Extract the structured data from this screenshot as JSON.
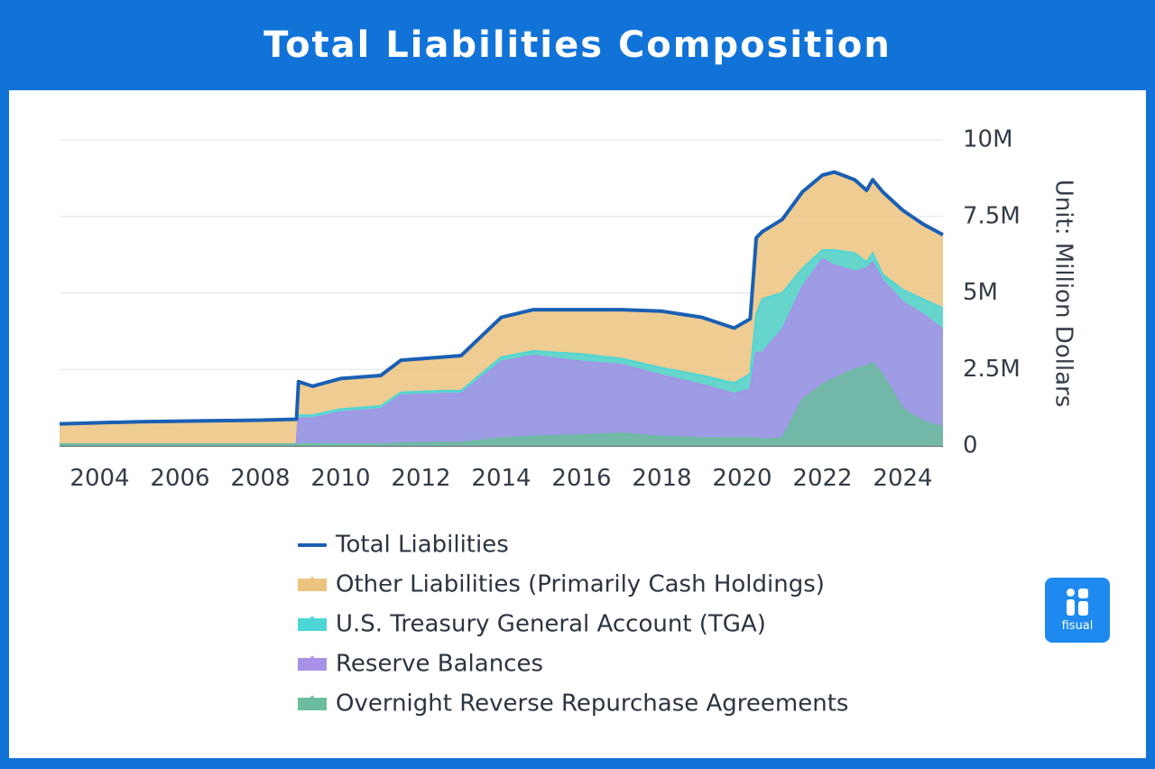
{
  "title": "Total Liabilities Composition",
  "logo": {
    "text": "fisual"
  },
  "chart_data": {
    "type": "area",
    "title": "Total Liabilities Composition",
    "ylabel": "Unit: Million Dollars",
    "xlim": [
      2003,
      2025
    ],
    "ylim": [
      0,
      10000000
    ],
    "yticks": [
      {
        "value": 0,
        "label": "0"
      },
      {
        "value": 2500000,
        "label": "2.5M"
      },
      {
        "value": 5000000,
        "label": "5M"
      },
      {
        "value": 7500000,
        "label": "7.5M"
      },
      {
        "value": 10000000,
        "label": "10M"
      }
    ],
    "xticks": [
      {
        "value": 2004,
        "label": "2004"
      },
      {
        "value": 2006,
        "label": "2006"
      },
      {
        "value": 2008,
        "label": "2008"
      },
      {
        "value": 2010,
        "label": "2010"
      },
      {
        "value": 2012,
        "label": "2012"
      },
      {
        "value": 2014,
        "label": "2014"
      },
      {
        "value": 2016,
        "label": "2016"
      },
      {
        "value": 2018,
        "label": "2018"
      },
      {
        "value": 2020,
        "label": "2020"
      },
      {
        "value": 2022,
        "label": "2022"
      },
      {
        "value": 2024,
        "label": "2024"
      }
    ],
    "x": [
      2003.0,
      2005.0,
      2008.0,
      2008.9,
      2008.95,
      2009.3,
      2010.0,
      2011.0,
      2011.5,
      2012.5,
      2013.0,
      2014.0,
      2014.8,
      2016.0,
      2017.0,
      2018.0,
      2019.0,
      2019.8,
      2020.2,
      2020.35,
      2020.5,
      2021.0,
      2021.5,
      2022.0,
      2022.3,
      2022.8,
      2023.1,
      2023.25,
      2023.5,
      2024.0,
      2024.5,
      2025.0
    ],
    "series": [
      {
        "name": "Overnight Reverse Repurchase Agreements",
        "color": "#6cbd9e",
        "values": [
          50000,
          50000,
          50000,
          50000,
          60000,
          60000,
          50000,
          50000,
          80000,
          100000,
          100000,
          250000,
          300000,
          350000,
          400000,
          300000,
          250000,
          250000,
          250000,
          250000,
          200000,
          250000,
          1500000,
          2000000,
          2200000,
          2500000,
          2600000,
          2700000,
          2300000,
          1200000,
          800000,
          600000
        ]
      },
      {
        "name": "Reserve Balances",
        "color": "#a792e8",
        "values": [
          50000,
          50000,
          50000,
          50000,
          900000,
          900000,
          1100000,
          1200000,
          1650000,
          1700000,
          1700000,
          2750000,
          2950000,
          2750000,
          2650000,
          2300000,
          2000000,
          1700000,
          1850000,
          3050000,
          3050000,
          3800000,
          5200000,
          6100000,
          5900000,
          5700000,
          5800000,
          6000000,
          5400000,
          4700000,
          4300000,
          3800000
        ]
      },
      {
        "name": "U.S. Treasury General Account (TGA)",
        "color": "#4dd6d6",
        "values": [
          50000,
          50000,
          50000,
          50000,
          1000000,
          1000000,
          1200000,
          1300000,
          1750000,
          1800000,
          1800000,
          2900000,
          3100000,
          3000000,
          2850000,
          2550000,
          2300000,
          2050000,
          2350000,
          4300000,
          4800000,
          5000000,
          5800000,
          6400000,
          6400000,
          6300000,
          6000000,
          6300000,
          5600000,
          5100000,
          4800000,
          4500000
        ]
      },
      {
        "name": "Other Liabilities (Primarily Cash Holdings)",
        "color": "#ecc37f",
        "values": [
          720000,
          790000,
          840000,
          870000,
          2100000,
          1950000,
          2200000,
          2300000,
          2800000,
          2900000,
          2950000,
          4200000,
          4450000,
          4450000,
          4450000,
          4400000,
          4200000,
          3850000,
          4150000,
          6800000,
          7000000,
          7400000,
          8300000,
          8850000,
          8950000,
          8700000,
          8350000,
          8700000,
          8300000,
          7700000,
          7250000,
          6900000
        ]
      },
      {
        "name": "Total Liabilities",
        "color": "#1a5fb4",
        "values": [
          720000,
          790000,
          840000,
          870000,
          2100000,
          1950000,
          2200000,
          2300000,
          2800000,
          2900000,
          2950000,
          4200000,
          4450000,
          4450000,
          4450000,
          4400000,
          4200000,
          3850000,
          4150000,
          6800000,
          7000000,
          7400000,
          8300000,
          8850000,
          8950000,
          8700000,
          8350000,
          8700000,
          8300000,
          7700000,
          7250000,
          6900000
        ]
      }
    ],
    "legend": [
      {
        "label": "Total Liabilities",
        "color": "#1a5fb4",
        "kind": "line"
      },
      {
        "label": "Other Liabilities (Primarily Cash Holdings)",
        "color": "#ecc37f",
        "kind": "area"
      },
      {
        "label": "U.S. Treasury General Account (TGA)",
        "color": "#4dd6d6",
        "kind": "area"
      },
      {
        "label": "Reserve Balances",
        "color": "#a792e8",
        "kind": "area"
      },
      {
        "label": "Overnight Reverse Repurchase Agreements",
        "color": "#6cbd9e",
        "kind": "area"
      }
    ],
    "legend_position": "bottom"
  }
}
